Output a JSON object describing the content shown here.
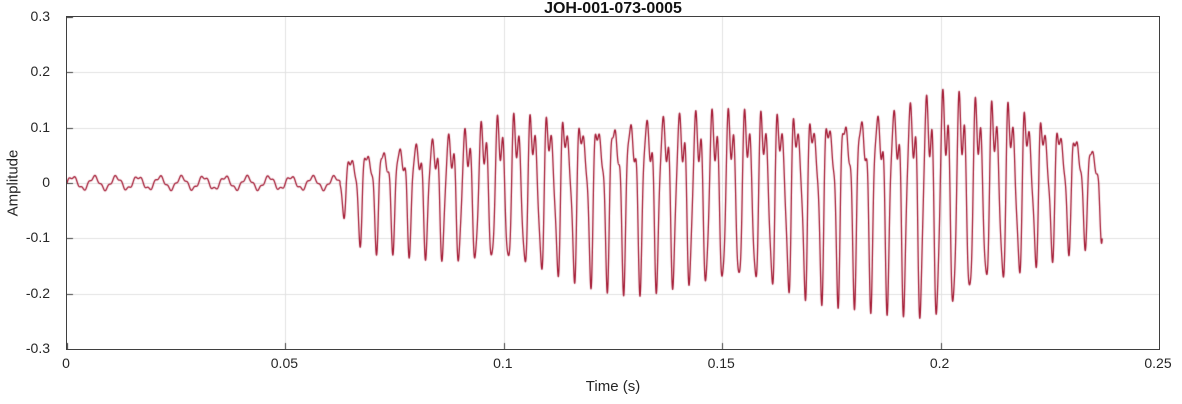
{
  "chart_data": {
    "type": "line",
    "title": "JOH-001-073-0005",
    "xlabel": "Time (s)",
    "ylabel": "Amplitude",
    "xlim": [
      0,
      0.25
    ],
    "ylim": [
      -0.3,
      0.3
    ],
    "xticks": [
      0,
      0.05,
      0.1,
      0.15,
      0.2,
      0.25
    ],
    "xtick_labels": [
      "0",
      "0.05",
      "0.1",
      "0.15",
      "0.2",
      "0.25"
    ],
    "yticks": [
      -0.3,
      -0.2,
      -0.1,
      0,
      0.1,
      0.2,
      0.3
    ],
    "ytick_labels": [
      "-0.3",
      "-0.2",
      "-0.1",
      "0",
      "0.1",
      "0.2",
      "0.3"
    ],
    "grid": true,
    "legend_position": "none",
    "line_color": "#A2142F",
    "grid_color": "#E2E2E2",
    "axis_color": "#3F3F3F",
    "text_color": "#262626",
    "signal": {
      "kind": "amplitude-modulated oscillation burst (waveform recording)",
      "t_start": 0,
      "t_end": 0.237,
      "pre_onset": {
        "t_end": 0.0625,
        "amplitude": 0.011,
        "freq_hz": 200
      },
      "burst_freq_hz": 265,
      "envelope_upper": [
        [
          0.0625,
          0.03
        ],
        [
          0.065,
          0.08
        ],
        [
          0.07,
          0.095
        ],
        [
          0.075,
          0.1
        ],
        [
          0.08,
          0.11
        ],
        [
          0.09,
          0.13
        ],
        [
          0.1,
          0.17
        ],
        [
          0.11,
          0.175
        ],
        [
          0.12,
          0.17
        ],
        [
          0.13,
          0.18
        ],
        [
          0.14,
          0.18
        ],
        [
          0.15,
          0.18
        ],
        [
          0.16,
          0.18
        ],
        [
          0.17,
          0.18
        ],
        [
          0.18,
          0.19
        ],
        [
          0.19,
          0.2
        ],
        [
          0.195,
          0.215
        ],
        [
          0.2,
          0.23
        ],
        [
          0.205,
          0.22
        ],
        [
          0.21,
          0.2
        ],
        [
          0.215,
          0.21
        ],
        [
          0.22,
          0.19
        ],
        [
          0.225,
          0.17
        ],
        [
          0.23,
          0.15
        ],
        [
          0.234,
          0.12
        ],
        [
          0.237,
          0.05
        ]
      ],
      "envelope_lower": [
        [
          0.0625,
          -0.04
        ],
        [
          0.065,
          -0.1
        ],
        [
          0.07,
          -0.12
        ],
        [
          0.075,
          -0.12
        ],
        [
          0.08,
          -0.13
        ],
        [
          0.09,
          -0.15
        ],
        [
          0.1,
          -0.16
        ],
        [
          0.11,
          -0.17
        ],
        [
          0.12,
          -0.18
        ],
        [
          0.13,
          -0.19
        ],
        [
          0.14,
          -0.19
        ],
        [
          0.15,
          -0.2
        ],
        [
          0.16,
          -0.2
        ],
        [
          0.17,
          -0.21
        ],
        [
          0.18,
          -0.21
        ],
        [
          0.19,
          -0.23
        ],
        [
          0.195,
          -0.25
        ],
        [
          0.2,
          -0.26
        ],
        [
          0.205,
          -0.24
        ],
        [
          0.21,
          -0.2
        ],
        [
          0.215,
          -0.19
        ],
        [
          0.22,
          -0.16
        ],
        [
          0.225,
          -0.14
        ],
        [
          0.23,
          -0.12
        ],
        [
          0.234,
          -0.11
        ],
        [
          0.237,
          -0.1
        ]
      ]
    }
  }
}
